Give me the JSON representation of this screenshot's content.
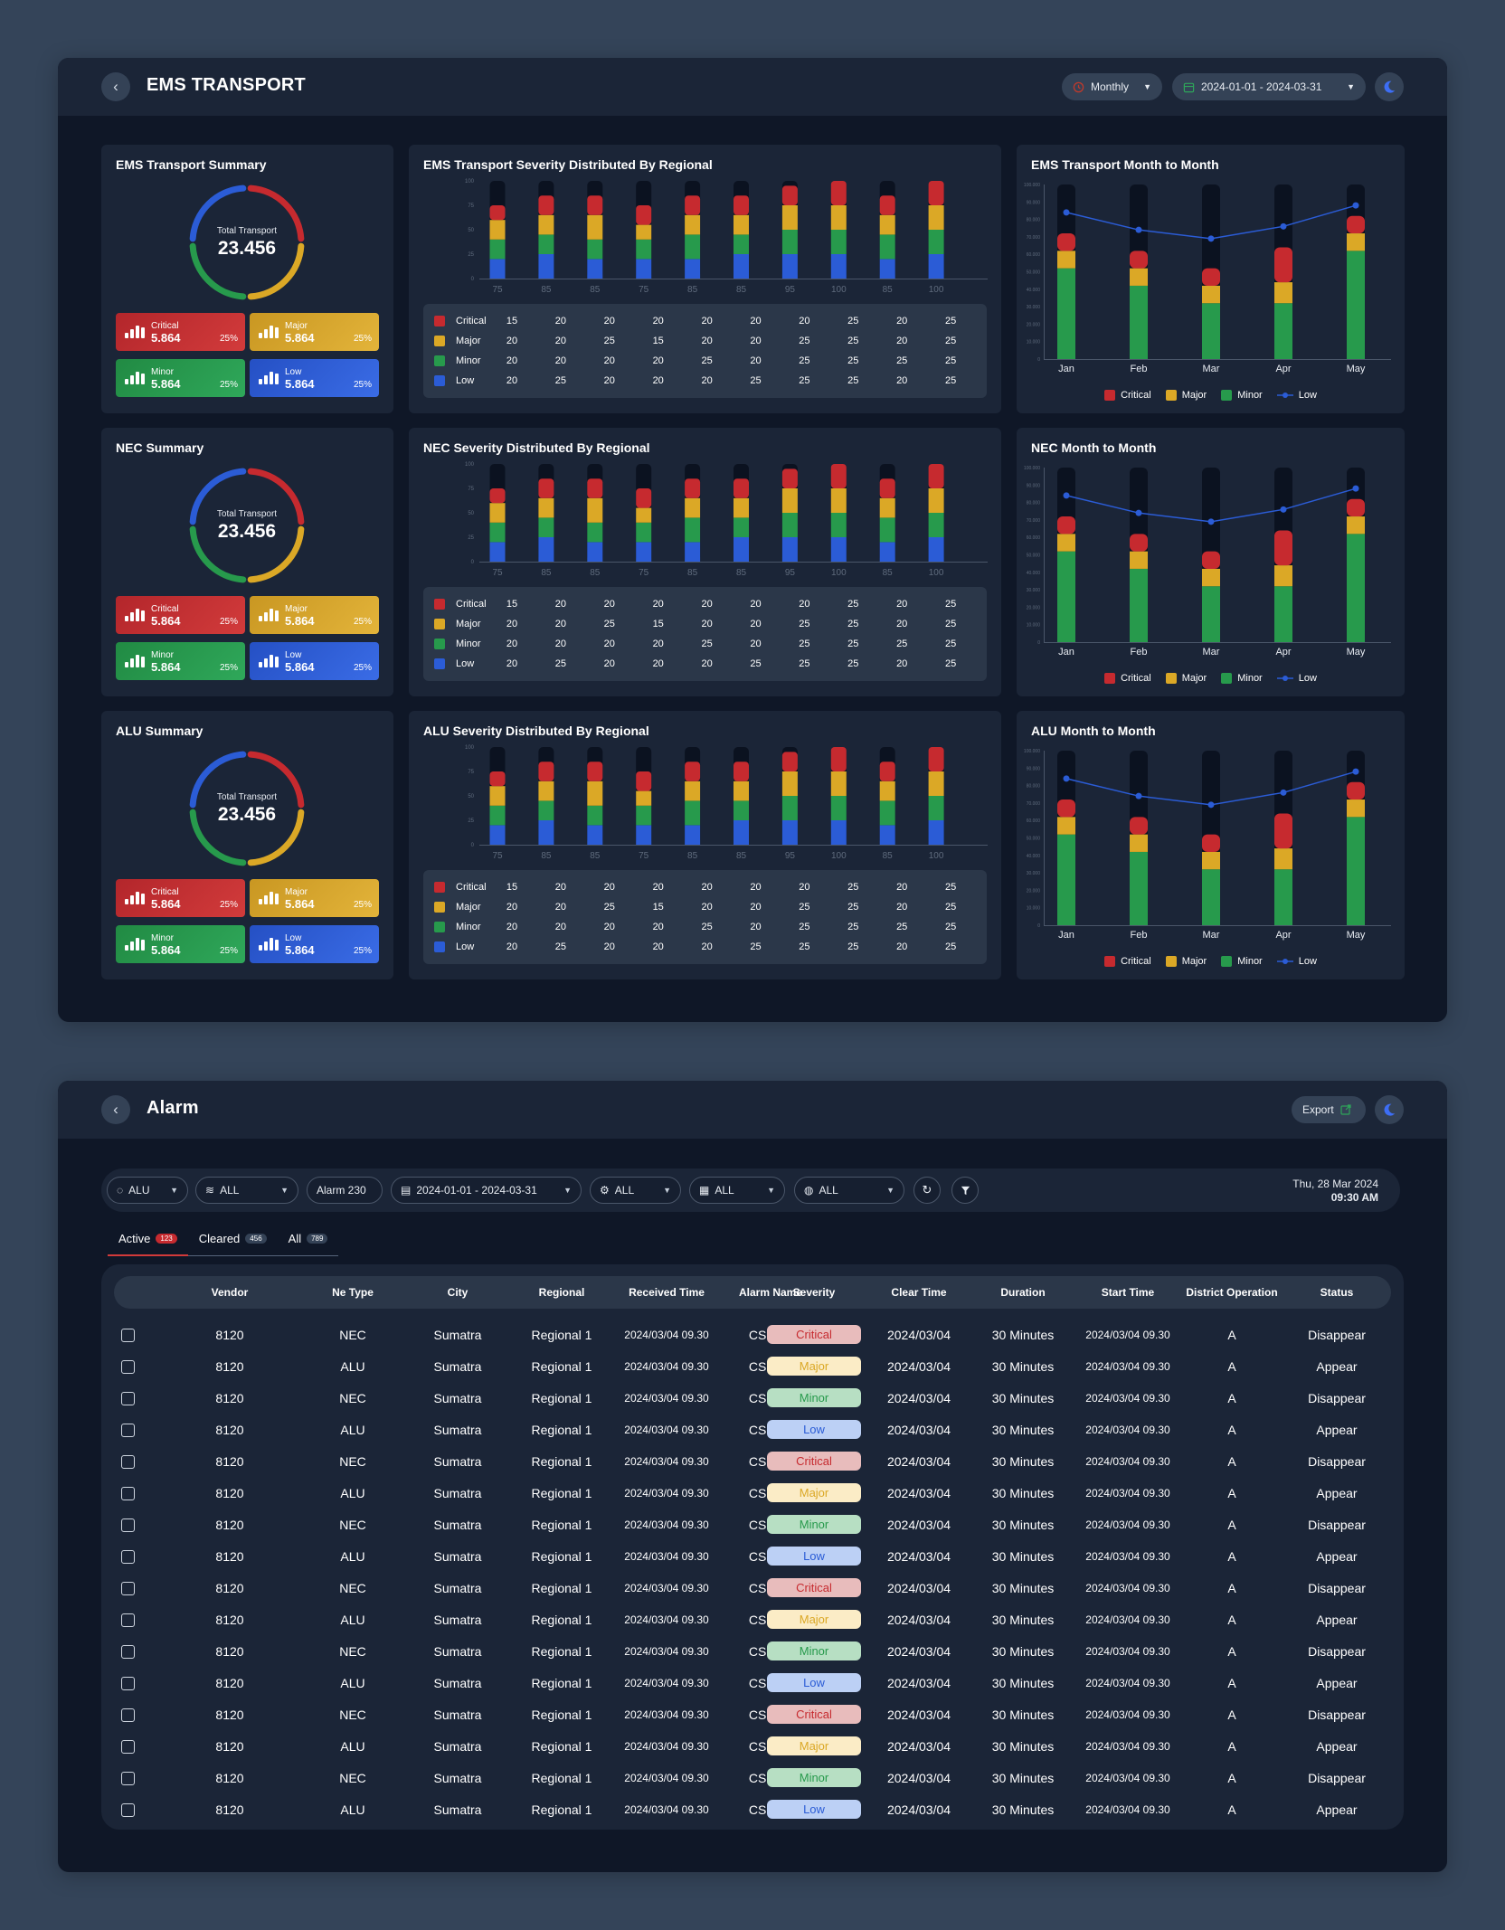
{
  "dashboard": {
    "title": "EMS TRANSPORT",
    "period": "Monthly",
    "date_range": "2024-01-01 - 2024-03-31"
  },
  "colors": {
    "critical": "#c62a2f",
    "major": "#dba826",
    "minor": "#279a4c",
    "low": "#2b5cd6",
    "track": "#0b1220"
  },
  "sections": [
    {
      "summary_title": "EMS Transport Summary",
      "regional_title": "EMS Transport Severity Distributed By Regional",
      "mtm_title": "EMS Transport Month to Month"
    },
    {
      "summary_title": "NEC Summary",
      "regional_title": "NEC Severity Distributed By Regional",
      "mtm_title": "NEC Month to Month"
    },
    {
      "summary_title": "ALU Summary",
      "regional_title": "ALU Severity Distributed By Regional",
      "mtm_title": "ALU Month to Month"
    }
  ],
  "summary": {
    "label": "Total Transport",
    "total": "23.456",
    "items": [
      {
        "name": "Critical",
        "value": "5.864",
        "pct": "25%"
      },
      {
        "name": "Major",
        "value": "5.864",
        "pct": "25%"
      },
      {
        "name": "Minor",
        "value": "5.864",
        "pct": "25%"
      },
      {
        "name": "Low",
        "value": "5.864",
        "pct": "25%"
      }
    ]
  },
  "chart_data": [
    {
      "type": "bar",
      "title": "Severity Distributed By Regional",
      "stacked": true,
      "categories": [
        "75",
        "85",
        "85",
        "75",
        "85",
        "85",
        "95",
        "100",
        "85",
        "100"
      ],
      "y_ticks": [
        "100",
        "75",
        "50",
        "25",
        "0"
      ],
      "ylim": [
        0,
        100
      ],
      "series": [
        {
          "name": "Critical",
          "values": [
            15,
            20,
            20,
            20,
            20,
            20,
            20,
            25,
            20,
            25
          ]
        },
        {
          "name": "Major",
          "values": [
            20,
            20,
            25,
            15,
            20,
            20,
            25,
            25,
            20,
            25
          ]
        },
        {
          "name": "Minor",
          "values": [
            20,
            20,
            20,
            20,
            25,
            20,
            25,
            25,
            25,
            25
          ]
        },
        {
          "name": "Low",
          "values": [
            20,
            25,
            20,
            20,
            20,
            25,
            25,
            25,
            20,
            25
          ]
        }
      ]
    },
    {
      "type": "bar",
      "title": "Month to Month",
      "stacked": true,
      "categories": [
        "Jan",
        "Feb",
        "Mar",
        "Apr",
        "May"
      ],
      "y_ticks": [
        "100.000",
        "90.000",
        "80.000",
        "70.000",
        "60.000",
        "50.000",
        "40.000",
        "30.000",
        "20.000",
        "10.000",
        "0"
      ],
      "ylim": [
        0,
        100000
      ],
      "series": [
        {
          "name": "Critical",
          "values": [
            10000,
            10000,
            10000,
            20000,
            10000
          ]
        },
        {
          "name": "Major",
          "values": [
            10000,
            10000,
            10000,
            12000,
            10000
          ]
        },
        {
          "name": "Minor",
          "values": [
            52000,
            42000,
            32000,
            32000,
            62000
          ]
        },
        {
          "name": "Low",
          "type": "line",
          "values": [
            84000,
            74000,
            69000,
            76000,
            88000
          ]
        }
      ],
      "legend": [
        "Critical",
        "Major",
        "Minor",
        "Low"
      ]
    }
  ],
  "alarm": {
    "title": "Alarm",
    "export_label": "Export",
    "filters": {
      "vendor": "ALU",
      "type": "ALL",
      "alarm": "Alarm 230",
      "date": "2024-01-01 - 2024-03-31",
      "f1": "ALL",
      "f2": "ALL",
      "f3": "ALL"
    },
    "date_line1": "Thu, 28 Mar 2024",
    "date_line2": "09:30 AM",
    "tabs": [
      {
        "label": "Active",
        "count": "123"
      },
      {
        "label": "Cleared",
        "count": "456"
      },
      {
        "label": "All",
        "count": "789"
      }
    ],
    "columns": [
      "Vendor",
      "Ne Type",
      "City",
      "Regional",
      "Received Time",
      "Alarm Name",
      "Severity",
      "Clear Time",
      "Duration",
      "Start Time",
      "District Operation",
      "Status"
    ],
    "rows": [
      {
        "vendor": "8120",
        "ne": "NEC",
        "city": "Sumatra",
        "regional": "Regional 1",
        "received": "2024/03/04 09.30",
        "alarm": "CSBAD",
        "severity": "Critical",
        "clear": "2024/03/04",
        "duration": "30 Minutes",
        "start": "2024/03/04 09.30",
        "district": "A",
        "status": "Disappear"
      },
      {
        "vendor": "8120",
        "ne": "ALU",
        "city": "Sumatra",
        "regional": "Regional 1",
        "received": "2024/03/04 09.30",
        "alarm": "CSBAD",
        "severity": "Major",
        "clear": "2024/03/04",
        "duration": "30 Minutes",
        "start": "2024/03/04 09.30",
        "district": "A",
        "status": "Appear"
      },
      {
        "vendor": "8120",
        "ne": "NEC",
        "city": "Sumatra",
        "regional": "Regional 1",
        "received": "2024/03/04 09.30",
        "alarm": "CSBAD",
        "severity": "Minor",
        "clear": "2024/03/04",
        "duration": "30 Minutes",
        "start": "2024/03/04 09.30",
        "district": "A",
        "status": "Disappear"
      },
      {
        "vendor": "8120",
        "ne": "ALU",
        "city": "Sumatra",
        "regional": "Regional 1",
        "received": "2024/03/04 09.30",
        "alarm": "CSBAD",
        "severity": "Low",
        "clear": "2024/03/04",
        "duration": "30 Minutes",
        "start": "2024/03/04 09.30",
        "district": "A",
        "status": "Appear"
      },
      {
        "vendor": "8120",
        "ne": "NEC",
        "city": "Sumatra",
        "regional": "Regional 1",
        "received": "2024/03/04 09.30",
        "alarm": "CSBAD",
        "severity": "Critical",
        "clear": "2024/03/04",
        "duration": "30 Minutes",
        "start": "2024/03/04 09.30",
        "district": "A",
        "status": "Disappear"
      },
      {
        "vendor": "8120",
        "ne": "ALU",
        "city": "Sumatra",
        "regional": "Regional 1",
        "received": "2024/03/04 09.30",
        "alarm": "CSBAD",
        "severity": "Major",
        "clear": "2024/03/04",
        "duration": "30 Minutes",
        "start": "2024/03/04 09.30",
        "district": "A",
        "status": "Appear"
      },
      {
        "vendor": "8120",
        "ne": "NEC",
        "city": "Sumatra",
        "regional": "Regional 1",
        "received": "2024/03/04 09.30",
        "alarm": "CSBAD",
        "severity": "Minor",
        "clear": "2024/03/04",
        "duration": "30 Minutes",
        "start": "2024/03/04 09.30",
        "district": "A",
        "status": "Disappear"
      },
      {
        "vendor": "8120",
        "ne": "ALU",
        "city": "Sumatra",
        "regional": "Regional 1",
        "received": "2024/03/04 09.30",
        "alarm": "CSBAD",
        "severity": "Low",
        "clear": "2024/03/04",
        "duration": "30 Minutes",
        "start": "2024/03/04 09.30",
        "district": "A",
        "status": "Appear"
      },
      {
        "vendor": "8120",
        "ne": "NEC",
        "city": "Sumatra",
        "regional": "Regional 1",
        "received": "2024/03/04 09.30",
        "alarm": "CSBAD",
        "severity": "Critical",
        "clear": "2024/03/04",
        "duration": "30 Minutes",
        "start": "2024/03/04 09.30",
        "district": "A",
        "status": "Disappear"
      },
      {
        "vendor": "8120",
        "ne": "ALU",
        "city": "Sumatra",
        "regional": "Regional 1",
        "received": "2024/03/04 09.30",
        "alarm": "CSBAD",
        "severity": "Major",
        "clear": "2024/03/04",
        "duration": "30 Minutes",
        "start": "2024/03/04 09.30",
        "district": "A",
        "status": "Appear"
      },
      {
        "vendor": "8120",
        "ne": "NEC",
        "city": "Sumatra",
        "regional": "Regional 1",
        "received": "2024/03/04 09.30",
        "alarm": "CSBAD",
        "severity": "Minor",
        "clear": "2024/03/04",
        "duration": "30 Minutes",
        "start": "2024/03/04 09.30",
        "district": "A",
        "status": "Disappear"
      },
      {
        "vendor": "8120",
        "ne": "ALU",
        "city": "Sumatra",
        "regional": "Regional 1",
        "received": "2024/03/04 09.30",
        "alarm": "CSBAD",
        "severity": "Low",
        "clear": "2024/03/04",
        "duration": "30 Minutes",
        "start": "2024/03/04 09.30",
        "district": "A",
        "status": "Appear"
      },
      {
        "vendor": "8120",
        "ne": "NEC",
        "city": "Sumatra",
        "regional": "Regional 1",
        "received": "2024/03/04 09.30",
        "alarm": "CSBAD",
        "severity": "Critical",
        "clear": "2024/03/04",
        "duration": "30 Minutes",
        "start": "2024/03/04 09.30",
        "district": "A",
        "status": "Disappear"
      },
      {
        "vendor": "8120",
        "ne": "ALU",
        "city": "Sumatra",
        "regional": "Regional 1",
        "received": "2024/03/04 09.30",
        "alarm": "CSBAD",
        "severity": "Major",
        "clear": "2024/03/04",
        "duration": "30 Minutes",
        "start": "2024/03/04 09.30",
        "district": "A",
        "status": "Appear"
      },
      {
        "vendor": "8120",
        "ne": "NEC",
        "city": "Sumatra",
        "regional": "Regional 1",
        "received": "2024/03/04 09.30",
        "alarm": "CSBAD",
        "severity": "Minor",
        "clear": "2024/03/04",
        "duration": "30 Minutes",
        "start": "2024/03/04 09.30",
        "district": "A",
        "status": "Disappear"
      },
      {
        "vendor": "8120",
        "ne": "ALU",
        "city": "Sumatra",
        "regional": "Regional 1",
        "received": "2024/03/04 09.30",
        "alarm": "CSBAD",
        "severity": "Low",
        "clear": "2024/03/04",
        "duration": "30 Minutes",
        "start": "2024/03/04 09.30",
        "district": "A",
        "status": "Appear"
      }
    ]
  }
}
